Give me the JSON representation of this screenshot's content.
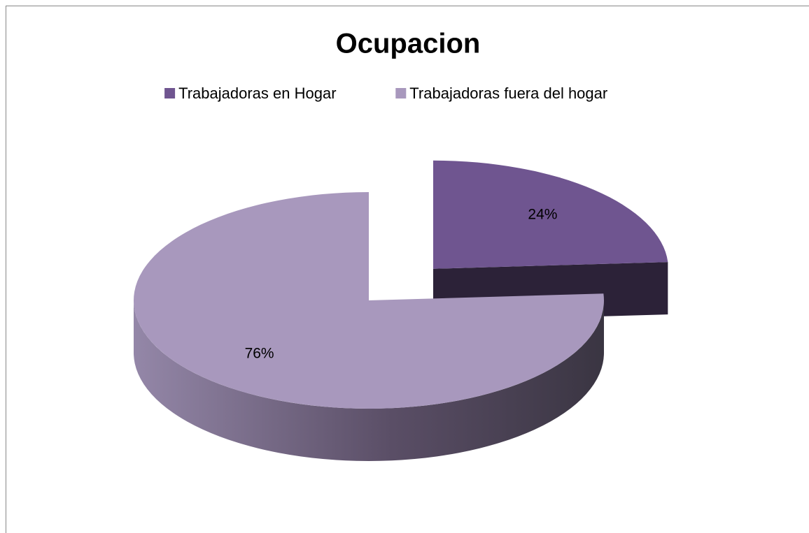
{
  "chart_data": {
    "type": "pie",
    "title": "Ocupacion",
    "categories": [
      "Trabajadoras en Hogar",
      "Trabajadoras fuera del hogar"
    ],
    "values": [
      24,
      76
    ],
    "value_labels": [
      "24%",
      "76%"
    ],
    "colors": [
      "#6f5590",
      "#a898bd"
    ],
    "legend": "top",
    "exploded": [
      true,
      false
    ]
  }
}
